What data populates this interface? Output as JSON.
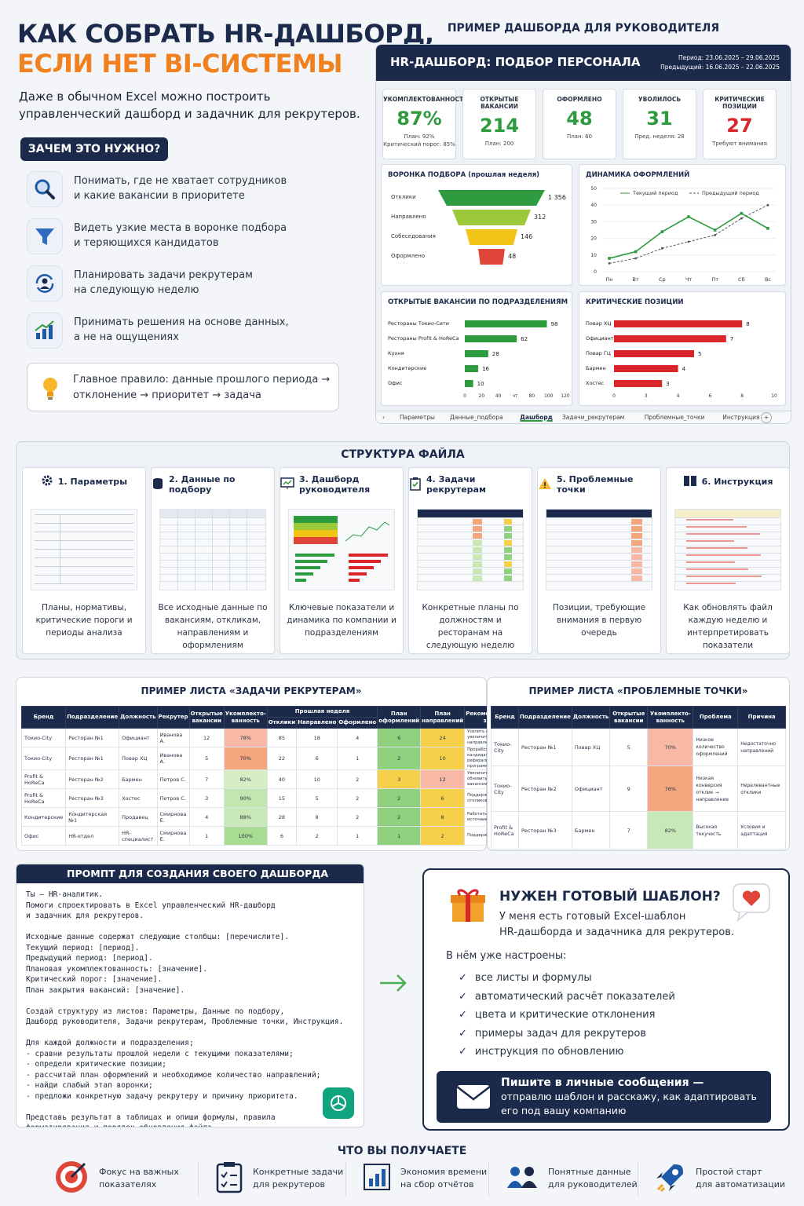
{
  "title_line1": "КАК СОБРАТЬ HR-ДАШБОРД,",
  "title_line2": "ЕСЛИ НЕТ BI-СИСТЕМЫ",
  "lead": "Даже в обычном Excel можно построить управленческий дашборд и задачник для рекрутеров.",
  "why_label": "ЗАЧЕМ ЭТО НУЖНО?",
  "why_items": [
    {
      "l1": "Понимать, где не хватает сотрудников",
      "l2": "и какие вакансии в приоритете",
      "icon": "search-icon"
    },
    {
      "l1": "Видеть узкие места в воронке подбора",
      "l2": "и теряющихся кандидатов",
      "icon": "funnel-icon"
    },
    {
      "l1": "Планировать задачи рекрутерам",
      "l2": "на следующую неделю",
      "icon": "refresh-person-icon"
    },
    {
      "l1": "Принимать решения на основе данных,",
      "l2": "а не на ощущениях",
      "icon": "growth-chart-icon"
    }
  ],
  "rule": {
    "l1": "Главное правило: данные прошлого периода →",
    "l2": "отклонение → приоритет → задача"
  },
  "dash_example_title": "ПРИМЕР ДАШБОРДА ДЛЯ РУКОВОДИТЕЛЯ",
  "dash": {
    "title": "HR-ДАШБОРД: ПОДБОР ПЕРСОНАЛА",
    "period": "Период: 23.06.2025 – 29.06.2025",
    "prev": "Предыдущий: 16.06.2025 – 22.06.2025",
    "kpis": [
      {
        "t": "УКОМПЛЕКТОВАННОСТЬ",
        "v": "87%",
        "s1": "План: 92%",
        "s2": "Критический порог: 85%",
        "color": "#2e9b3e"
      },
      {
        "t": "ОТКРЫТЫЕ ВАКАНСИИ",
        "v": "214",
        "s1": "План: 200",
        "s2": "",
        "color": "#2e9b3e"
      },
      {
        "t": "ОФОРМЛЕНО",
        "v": "48",
        "s1": "План: 60",
        "s2": "",
        "color": "#2e9b3e"
      },
      {
        "t": "УВОЛИЛОСЬ",
        "v": "31",
        "s1": "Пред. неделя: 28",
        "s2": "",
        "color": "#2e9b3e"
      },
      {
        "t": "КРИТИЧЕСКИЕ ПОЗИЦИИ",
        "v": "27",
        "s1": "Требуют внимания",
        "s2": "",
        "color": "#d8262b"
      }
    ],
    "funnel_title": "ВОРОНКА ПОДБОРА (прошлая неделя)",
    "funnel": [
      {
        "label": "Отклики",
        "value": "1 356",
        "color": "#2e9b3e"
      },
      {
        "label": "Направлено",
        "value": "312",
        "color": "#9cc93a"
      },
      {
        "label": "Собеседования",
        "value": "146",
        "color": "#f2c417"
      },
      {
        "label": "Оформлено",
        "value": "48",
        "color": "#e0453a"
      }
    ],
    "tabs": [
      "Параметры",
      "Данные_подбора",
      "Дашборд",
      "Задачи_рекрутерам",
      "Проблемные_точки",
      "Инструкция"
    ]
  },
  "chart_data": [
    {
      "type": "line",
      "title": "ДИНАМИКА ОФОРМЛЕНИЙ",
      "categories": [
        "Пн",
        "Вт",
        "Ср",
        "Чт",
        "Пт",
        "Сб",
        "Вс"
      ],
      "ylim": [
        0,
        50
      ],
      "yticks": [
        0,
        10,
        20,
        30,
        40,
        50
      ],
      "series": [
        {
          "name": "Текущий период",
          "values": [
            8,
            12,
            24,
            33,
            25,
            35,
            26
          ],
          "color": "#2e9b3e"
        },
        {
          "name": "Предыдущий период",
          "values": [
            5,
            8,
            14,
            18,
            22,
            32,
            40
          ],
          "color": "#555555"
        }
      ]
    },
    {
      "type": "bar",
      "title": "ОТКРЫТЫЕ ВАКАНСИИ ПО ПОДРАЗДЕЛЕНИЯМ",
      "categories": [
        "Рестораны Токио-Сити",
        "Рестораны Profit & HoReCa",
        "Кухня",
        "Кондитерские",
        "Офис"
      ],
      "values": [
        98,
        62,
        28,
        16,
        10
      ],
      "xlim": [
        0,
        120
      ],
      "xticks": [
        "0",
        "20",
        "40",
        "чт",
        "80",
        "100",
        "120"
      ],
      "color": "#2e9b3e"
    },
    {
      "type": "bar",
      "title": "КРИТИЧЕСКИЕ ПОЗИЦИИ",
      "categories": [
        "Повар ХЦ",
        "Официант",
        "Повар ГЦ",
        "Бармен",
        "Хостес"
      ],
      "values": [
        8,
        7,
        5,
        4,
        3
      ],
      "xlim": [
        0,
        10
      ],
      "xticks": [
        "0",
        "3",
        "4",
        "6",
        "8",
        "10"
      ],
      "color": "#d8262b"
    }
  ],
  "structure": {
    "title": "СТРУКТУРА ФАЙЛА",
    "cols": [
      {
        "t": "1. Параметры",
        "d": "Планы, нормативы, критические пороги и периоды анализа",
        "icon": "gear-icon"
      },
      {
        "t": "2. Данные по подбору",
        "d": "Все исходные данные по вакансиям, откликам, направлениям и оформлениям",
        "icon": "database-icon"
      },
      {
        "t": "3. Дашборд руководителя",
        "d": "Ключевые показатели и динамика по компании и подразделениям",
        "icon": "presentation-icon"
      },
      {
        "t": "4. Задачи рекрутерам",
        "d": "Конкретные планы по должностям и ресторанам на следующую неделю",
        "icon": "clipboard-check-icon"
      },
      {
        "t": "5. Проблемные точки",
        "d": "Позиции, требующие внимания в первую очередь",
        "icon": "warning-icon"
      },
      {
        "t": "6. Инструкция",
        "d": "Как обновлять файл каждую неделю и интерпретировать показатели",
        "icon": "book-icon"
      }
    ]
  },
  "tasks": {
    "title": "ПРИМЕР ЛИСТА «ЗАДАЧИ РЕКРУТЕРАМ»",
    "headers": [
      "Бренд",
      "Подразделение",
      "Должность",
      "Рекрутер",
      "Открытые вакансии",
      "Укомплекто-ванность",
      "Отклики",
      "Направлено",
      "Оформлено",
      "План оформлений",
      "План направлений",
      "Рекомендованная задача"
    ],
    "group": "Прошлая неделя",
    "rows": [
      [
        "Токио-City",
        "Ресторан №1",
        "Официант",
        "Иванова А.",
        "12",
        "78%",
        "85",
        "18",
        "4",
        "6",
        "24",
        "Усилить источник HH, увеличить количество направлений"
      ],
      [
        "Токио-City",
        "Ресторан №1",
        "Повар ХЦ",
        "Иванова А.",
        "5",
        "70%",
        "22",
        "6",
        "1",
        "2",
        "10",
        "Проработать базу кандидатов, запустить реферальную программу"
      ],
      [
        "Profit & HoReCa",
        "Ресторан №2",
        "Бармен",
        "Петров С.",
        "7",
        "82%",
        "40",
        "10",
        "2",
        "3",
        "12",
        "Увеличить отклики, обновить текст вакансии"
      ],
      [
        "Profit & HoReCa",
        "Ресторан №3",
        "Хостес",
        "Петров С.",
        "3",
        "90%",
        "15",
        "5",
        "2",
        "2",
        "6",
        "Поддерживать поток откликов"
      ],
      [
        "Кондитерские",
        "Кондитерская №1",
        "Продавец",
        "Смирнова Е.",
        "4",
        "88%",
        "28",
        "8",
        "2",
        "2",
        "8",
        "Работать с активными источниками"
      ],
      [
        "Офис",
        "HR-отдел",
        "HR-специалист",
        "Смирнова Е.",
        "1",
        "100%",
        "6",
        "2",
        "1",
        "1",
        "2",
        "Поддерживать воронку"
      ]
    ],
    "comp_colors": [
      "#f7b9a6",
      "#f4a67f",
      "#d6eec4",
      "#c2e6b0",
      "#c8e8b8",
      "#a9dc93"
    ],
    "plan_colors": [
      [
        "#8fd17e",
        "#f7d04a"
      ],
      [
        "#8fd17e",
        "#f7d04a"
      ],
      [
        "#f7d04a",
        "#f7b9a6"
      ],
      [
        "#8fd17e",
        "#f7d04a"
      ],
      [
        "#8fd17e",
        "#f7d04a"
      ],
      [
        "#8fd17e",
        "#f7d04a"
      ]
    ]
  },
  "problems": {
    "title": "ПРИМЕР ЛИСТА «ПРОБЛЕМНЫЕ ТОЧКИ»",
    "headers": [
      "Бренд",
      "Подразделение",
      "Должность",
      "Открытые вакансии",
      "Укомплекто-ванность",
      "Проблема",
      "Причина"
    ],
    "rows": [
      [
        "Токио-City",
        "Ресторан №1",
        "Повар ХЦ",
        "5",
        "70%",
        "Низкое количество оформлений",
        "Недостаточно направлений"
      ],
      [
        "Токио-City",
        "Ресторан №2",
        "Официант",
        "9",
        "76%",
        "Низкая конверсия отклик → направление",
        "Нерелевантные отклики"
      ],
      [
        "Profit & HoReCa",
        "Ресторан №3",
        "Бармен",
        "7",
        "82%",
        "Высокая текучесть",
        "Условия и адаптация"
      ]
    ],
    "comp_colors": [
      "#f7b9a6",
      "#f4a67f",
      "#c8e8b8"
    ]
  },
  "prompt": {
    "title": "ПРОМПТ ДЛЯ СОЗДАНИЯ СВОЕГО ДАШБОРДА",
    "text": "Ты — HR-аналитик.\nПомоги спроектировать в Excel управленческий HR-дашборд\nи задачник для рекрутеров.\n\nИсходные данные содержат следующие столбцы: [перечислите].\nТекущий период: [период].\nПредыдущий период: [период].\nПлановая укомплектованность: [значение].\nКритический порог: [значение].\nПлан закрытия вакансий: [значение].\n\nСоздай структуру из листов: Параметры, Данные по подбору,\nДашборд руководителя, Задачи рекрутерам, Проблемные точки, Инструкция.\n\nДля каждой должности и подразделения;\n- сравни результаты прошлой недели с текущими показателями;\n- определи критические позиции;\n- рассчитай план оформлений и необходимое количество направлений;\n- найди слабый этап воронки;\n- предложи конкретную задачу рекрутеру и причину приоритета.\n\nПредставь результат в таблицах и опиши формулы, правила\nформатирования и порядок обновления файла.\nЕсли данных не хватает - укажи, каких показателей не хватает."
  },
  "template": {
    "title": "НУЖЕН ГОТОВЫЙ ШАБЛОН?",
    "sub1": "У меня есть готовый Excel-шаблон",
    "sub2": "HR-дашборда и задачника для рекрутеров.",
    "inside": "В нём уже настроены:",
    "checks": [
      "все листы и формулы",
      "автоматический расчёт показателей",
      "цвета и критические отклонения",
      "примеры задач для рекрутеров",
      "инструкция по обновлению"
    ],
    "cta1": "Пишите в личные сообщения —",
    "cta2": "отправлю шаблон и расскажу, как адаптировать",
    "cta3": "его под вашу компанию"
  },
  "gains": {
    "title": "ЧТО ВЫ ПОЛУЧАЕТЕ",
    "items": [
      {
        "l1": "Фокус на важных",
        "l2": "показателях",
        "icon": "target-icon"
      },
      {
        "l1": "Конкретные задачи",
        "l2": "для рекрутеров",
        "icon": "checklist-icon"
      },
      {
        "l1": "Экономия времени",
        "l2": "на сбор отчётов",
        "icon": "report-chart-icon"
      },
      {
        "l1": "Понятные данные",
        "l2": "для руководителей",
        "icon": "people-icon"
      },
      {
        "l1": "Простой старт",
        "l2": "для автоматизации",
        "icon": "rocket-icon"
      }
    ]
  }
}
